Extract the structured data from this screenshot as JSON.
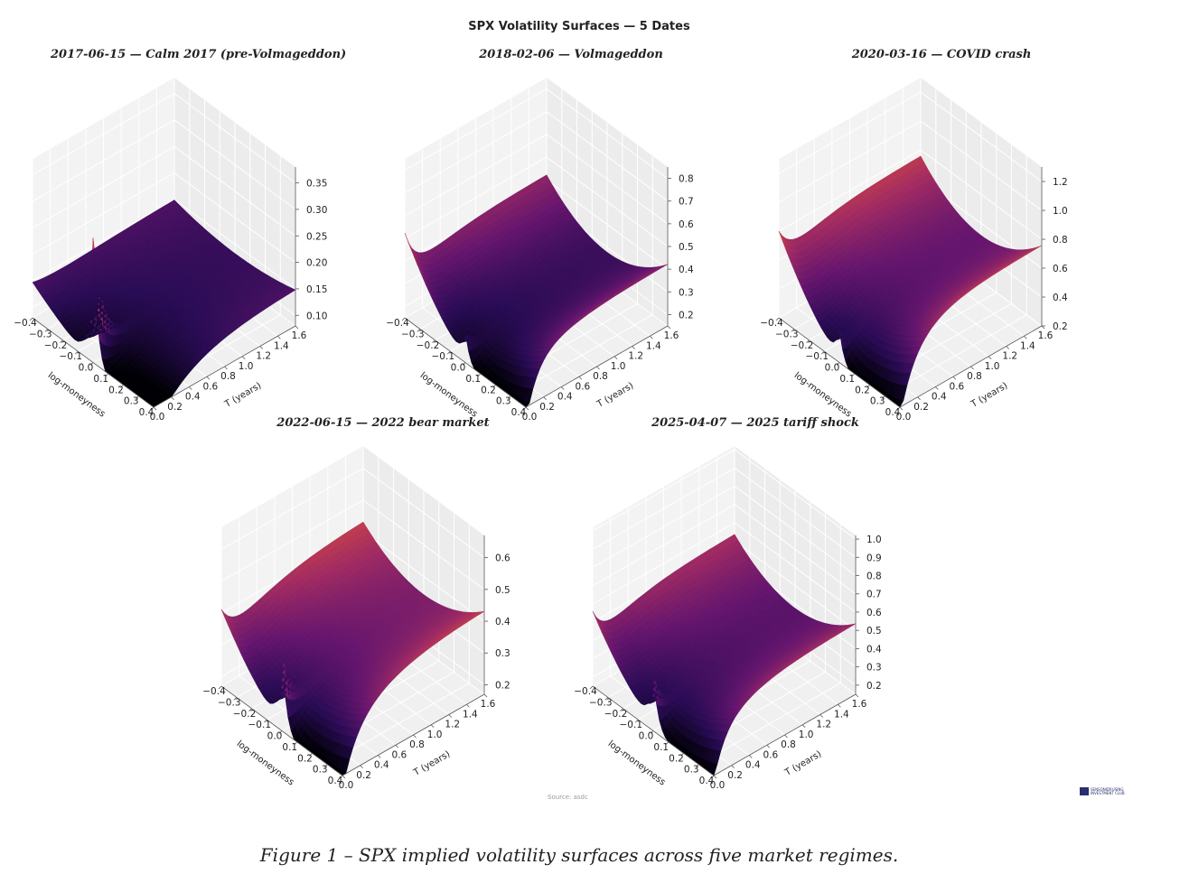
{
  "suptitle": "SPX Volatility Surfaces — 5 Dates",
  "caption": "Figure 1 – SPX implied volatility surfaces across five market regimes.",
  "source": "Source: asdc",
  "logo_text": [
    "SENSONIDRUSING",
    "INVESTMENT CLUB"
  ],
  "colors": {
    "colormap": "inferno",
    "pane_back": "#ececec",
    "pane_side": "#f3f3f3",
    "pane_floor": "#f0f0f0",
    "grid": "#ffffff",
    "text": "#222222",
    "logo": "#2a2f6e"
  },
  "chart_data": [
    {
      "type": "surface",
      "title": "2017-06-15 — Calm 2017 (pre-Volmageddon)",
      "xlabel": "log-moneyness",
      "ylabel": "T (years)",
      "xlim": [
        -0.4,
        0.4
      ],
      "ylim": [
        0.0,
        1.6
      ],
      "zlim": [
        0.08,
        0.38
      ],
      "xticks": [
        "−0.4",
        "−0.3",
        "−0.2",
        "−0.1",
        "0.0",
        "0.1",
        "0.2",
        "0.3",
        "0.4"
      ],
      "yticks": [
        "0.0",
        "0.2",
        "0.4",
        "0.6",
        "0.8",
        "1.0",
        "1.2",
        "1.4",
        "1.6"
      ],
      "zticks": [
        "0.10",
        "0.15",
        "0.20",
        "0.25",
        "0.30",
        "0.35"
      ],
      "params": {
        "base": 0.075,
        "skew": 0.14,
        "sk_decay": 0.35,
        "curv": 0.1,
        "term": 0.06,
        "term_scale": 0.5,
        "spike": 0.24,
        "spike_w": 0.03,
        "spike_d": 0.12,
        "zmin_clip": 0.08,
        "zmax_clip": 0.38
      }
    },
    {
      "type": "surface",
      "title": "2018-02-06 — Volmageddon",
      "xlabel": "log-moneyness",
      "ylabel": "T (years)",
      "xlim": [
        -0.4,
        0.4
      ],
      "ylim": [
        0.0,
        1.6
      ],
      "zlim": [
        0.15,
        0.85
      ],
      "xticks": [
        "−0.4",
        "−0.3",
        "−0.2",
        "−0.1",
        "0.0",
        "0.1",
        "0.2",
        "0.3",
        "0.4"
      ],
      "yticks": [
        "0.0",
        "0.2",
        "0.4",
        "0.6",
        "0.8",
        "1.0",
        "1.2",
        "1.4",
        "1.6"
      ],
      "zticks": [
        "0.2",
        "0.3",
        "0.4",
        "0.5",
        "0.6",
        "0.7",
        "0.8"
      ],
      "params": {
        "base": 0.16,
        "skew": 0.55,
        "sk_decay": 0.12,
        "curv": 0.9,
        "term": 0.12,
        "term_scale": 0.4,
        "spike": 0.12,
        "spike_w": 0.03,
        "spike_d": 0.12,
        "zmin_clip": 0.15,
        "zmax_clip": 0.85
      }
    },
    {
      "type": "surface",
      "title": "2020-03-16 — COVID crash",
      "xlabel": "log-moneyness",
      "ylabel": "T (years)",
      "xlim": [
        -0.4,
        0.4
      ],
      "ylim": [
        0.0,
        1.6
      ],
      "zlim": [
        0.2,
        1.3
      ],
      "xticks": [
        "−0.4",
        "−0.3",
        "−0.2",
        "−0.1",
        "0.0",
        "0.1",
        "0.2",
        "0.3",
        "0.4"
      ],
      "yticks": [
        "0.0",
        "0.2",
        "0.4",
        "0.6",
        "0.8",
        "1.0",
        "1.2",
        "1.4",
        "1.6"
      ],
      "zticks": [
        "0.2",
        "0.4",
        "0.6",
        "0.8",
        "1.0",
        "1.2"
      ],
      "params": {
        "base": 0.22,
        "skew": 0.85,
        "sk_decay": 0.15,
        "curv": 1.5,
        "term": 0.3,
        "term_scale": 0.35,
        "spike": 0.2,
        "spike_w": 0.03,
        "spike_d": 0.1,
        "zmin_clip": 0.2,
        "zmax_clip": 1.3
      }
    },
    {
      "type": "surface",
      "title": "2022-06-15 — 2022 bear market",
      "xlabel": "log-moneyness",
      "ylabel": "T (years)",
      "xlim": [
        -0.4,
        0.4
      ],
      "ylim": [
        0.0,
        1.6
      ],
      "zlim": [
        0.17,
        0.67
      ],
      "xticks": [
        "−0.4",
        "−0.3",
        "−0.2",
        "−0.1",
        "0.0",
        "0.1",
        "0.2",
        "0.3",
        "0.4"
      ],
      "yticks": [
        "0.0",
        "0.2",
        "0.4",
        "0.6",
        "0.8",
        "1.0",
        "1.2",
        "1.4",
        "1.6"
      ],
      "zticks": [
        "0.2",
        "0.3",
        "0.4",
        "0.5",
        "0.6"
      ],
      "params": {
        "base": 0.18,
        "skew": 0.36,
        "sk_decay": 0.15,
        "curv": 0.55,
        "term": 0.17,
        "term_scale": 0.5,
        "spike": 0.23,
        "spike_w": 0.03,
        "spike_d": 0.12,
        "zmin_clip": 0.17,
        "zmax_clip": 0.67
      }
    },
    {
      "type": "surface",
      "title": "2025-04-07 — 2025 tariff shock",
      "xlabel": "log-moneyness",
      "ylabel": "T (years)",
      "xlim": [
        -0.4,
        0.4
      ],
      "ylim": [
        0.0,
        1.6
      ],
      "zlim": [
        0.15,
        1.02
      ],
      "xticks": [
        "−0.4",
        "−0.3",
        "−0.2",
        "−0.1",
        "0.0",
        "0.1",
        "0.2",
        "0.3",
        "0.4"
      ],
      "yticks": [
        "0.0",
        "0.2",
        "0.4",
        "0.6",
        "0.8",
        "1.0",
        "1.2",
        "1.4",
        "1.6"
      ],
      "zticks": [
        "0.2",
        "0.3",
        "0.4",
        "0.5",
        "0.6",
        "0.7",
        "0.8",
        "0.9",
        "1.0"
      ],
      "params": {
        "base": 0.18,
        "skew": 0.55,
        "sk_decay": 0.12,
        "curv": 1.0,
        "term": 0.2,
        "term_scale": 0.4,
        "spike": 0.28,
        "spike_w": 0.03,
        "spike_d": 0.1,
        "zmin_clip": 0.15,
        "zmax_clip": 1.02
      }
    }
  ]
}
